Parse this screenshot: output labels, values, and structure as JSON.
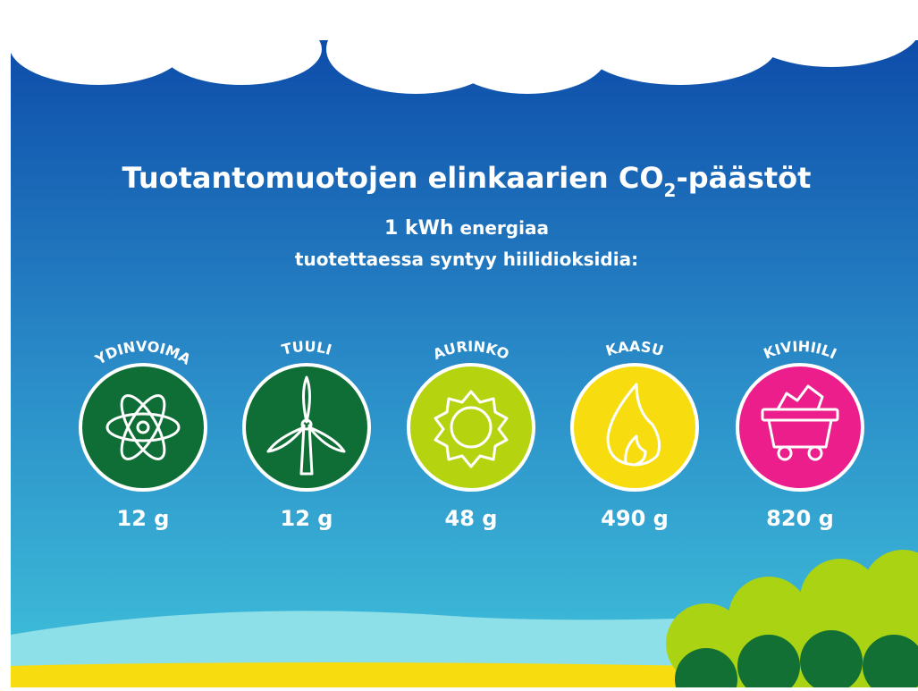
{
  "title": {
    "main": "Tuotantomuotojen elinkaarien CO",
    "sub": "2",
    "end": "-päästöt"
  },
  "subtitle": {
    "bold": "1 kWh",
    "line1": "energiaa",
    "line2": "tuotettaessa syntyy hiilidioksidia:"
  },
  "items": [
    {
      "label": "YDINVOIMA",
      "value": "12 g"
    },
    {
      "label": "TUULI",
      "value": "12 g"
    },
    {
      "label": "AURINKO",
      "value": "48 g"
    },
    {
      "label": "KAASU",
      "value": "490 g"
    },
    {
      "label": "KIVIHIILI",
      "value": "820 g"
    }
  ]
}
